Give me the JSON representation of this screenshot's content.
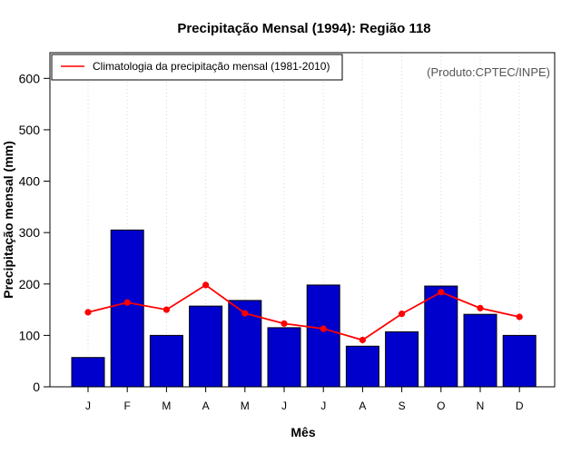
{
  "chart_data": {
    "type": "bar",
    "title": "Precipitação Mensal (1994): Região 118",
    "xlabel": "Mês",
    "ylabel": "Precipitação mensal (mm)",
    "categories": [
      "J",
      "F",
      "M",
      "A",
      "M",
      "J",
      "J",
      "A",
      "S",
      "O",
      "N",
      "D"
    ],
    "ylim": [
      0,
      650
    ],
    "yticks": [
      0,
      100,
      200,
      300,
      400,
      500,
      600
    ],
    "grid": "vertical dotted",
    "series": [
      {
        "name": "Precipitação mensal (1994)",
        "type": "bar",
        "color": "#0000CD",
        "values": [
          57,
          305,
          100,
          157,
          168,
          115,
          198,
          79,
          107,
          196,
          141,
          100
        ]
      },
      {
        "name": "Climatologia da precipitação mensal (1981-2010)",
        "type": "line",
        "color": "#FF0000",
        "values": [
          145,
          164,
          150,
          198,
          143,
          123,
          113,
          91,
          142,
          184,
          153,
          136
        ]
      }
    ],
    "legend": {
      "position": "top-left",
      "entries": [
        "Climatologia da precipitação mensal (1981-2010)"
      ]
    },
    "annotation": "(Produto:CPTEC/INPE)"
  }
}
